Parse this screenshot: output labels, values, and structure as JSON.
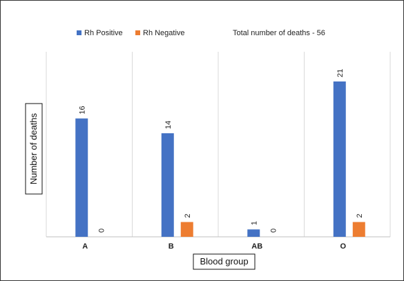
{
  "chart_data": {
    "type": "bar",
    "title": "",
    "annotation": "Total number of deaths - 56",
    "xlabel": "Blood group",
    "ylabel": "Number of deaths",
    "categories": [
      "A",
      "B",
      "AB",
      "O"
    ],
    "series": [
      {
        "name": "Rh Positive",
        "color": "#4472C4",
        "values": [
          16,
          14,
          1,
          21
        ]
      },
      {
        "name": "Rh Negative",
        "color": "#ED7D31",
        "values": [
          0,
          2,
          0,
          2
        ]
      }
    ],
    "ylim": [
      0,
      24
    ],
    "grid": "vertical category separators",
    "legend_position": "top"
  }
}
